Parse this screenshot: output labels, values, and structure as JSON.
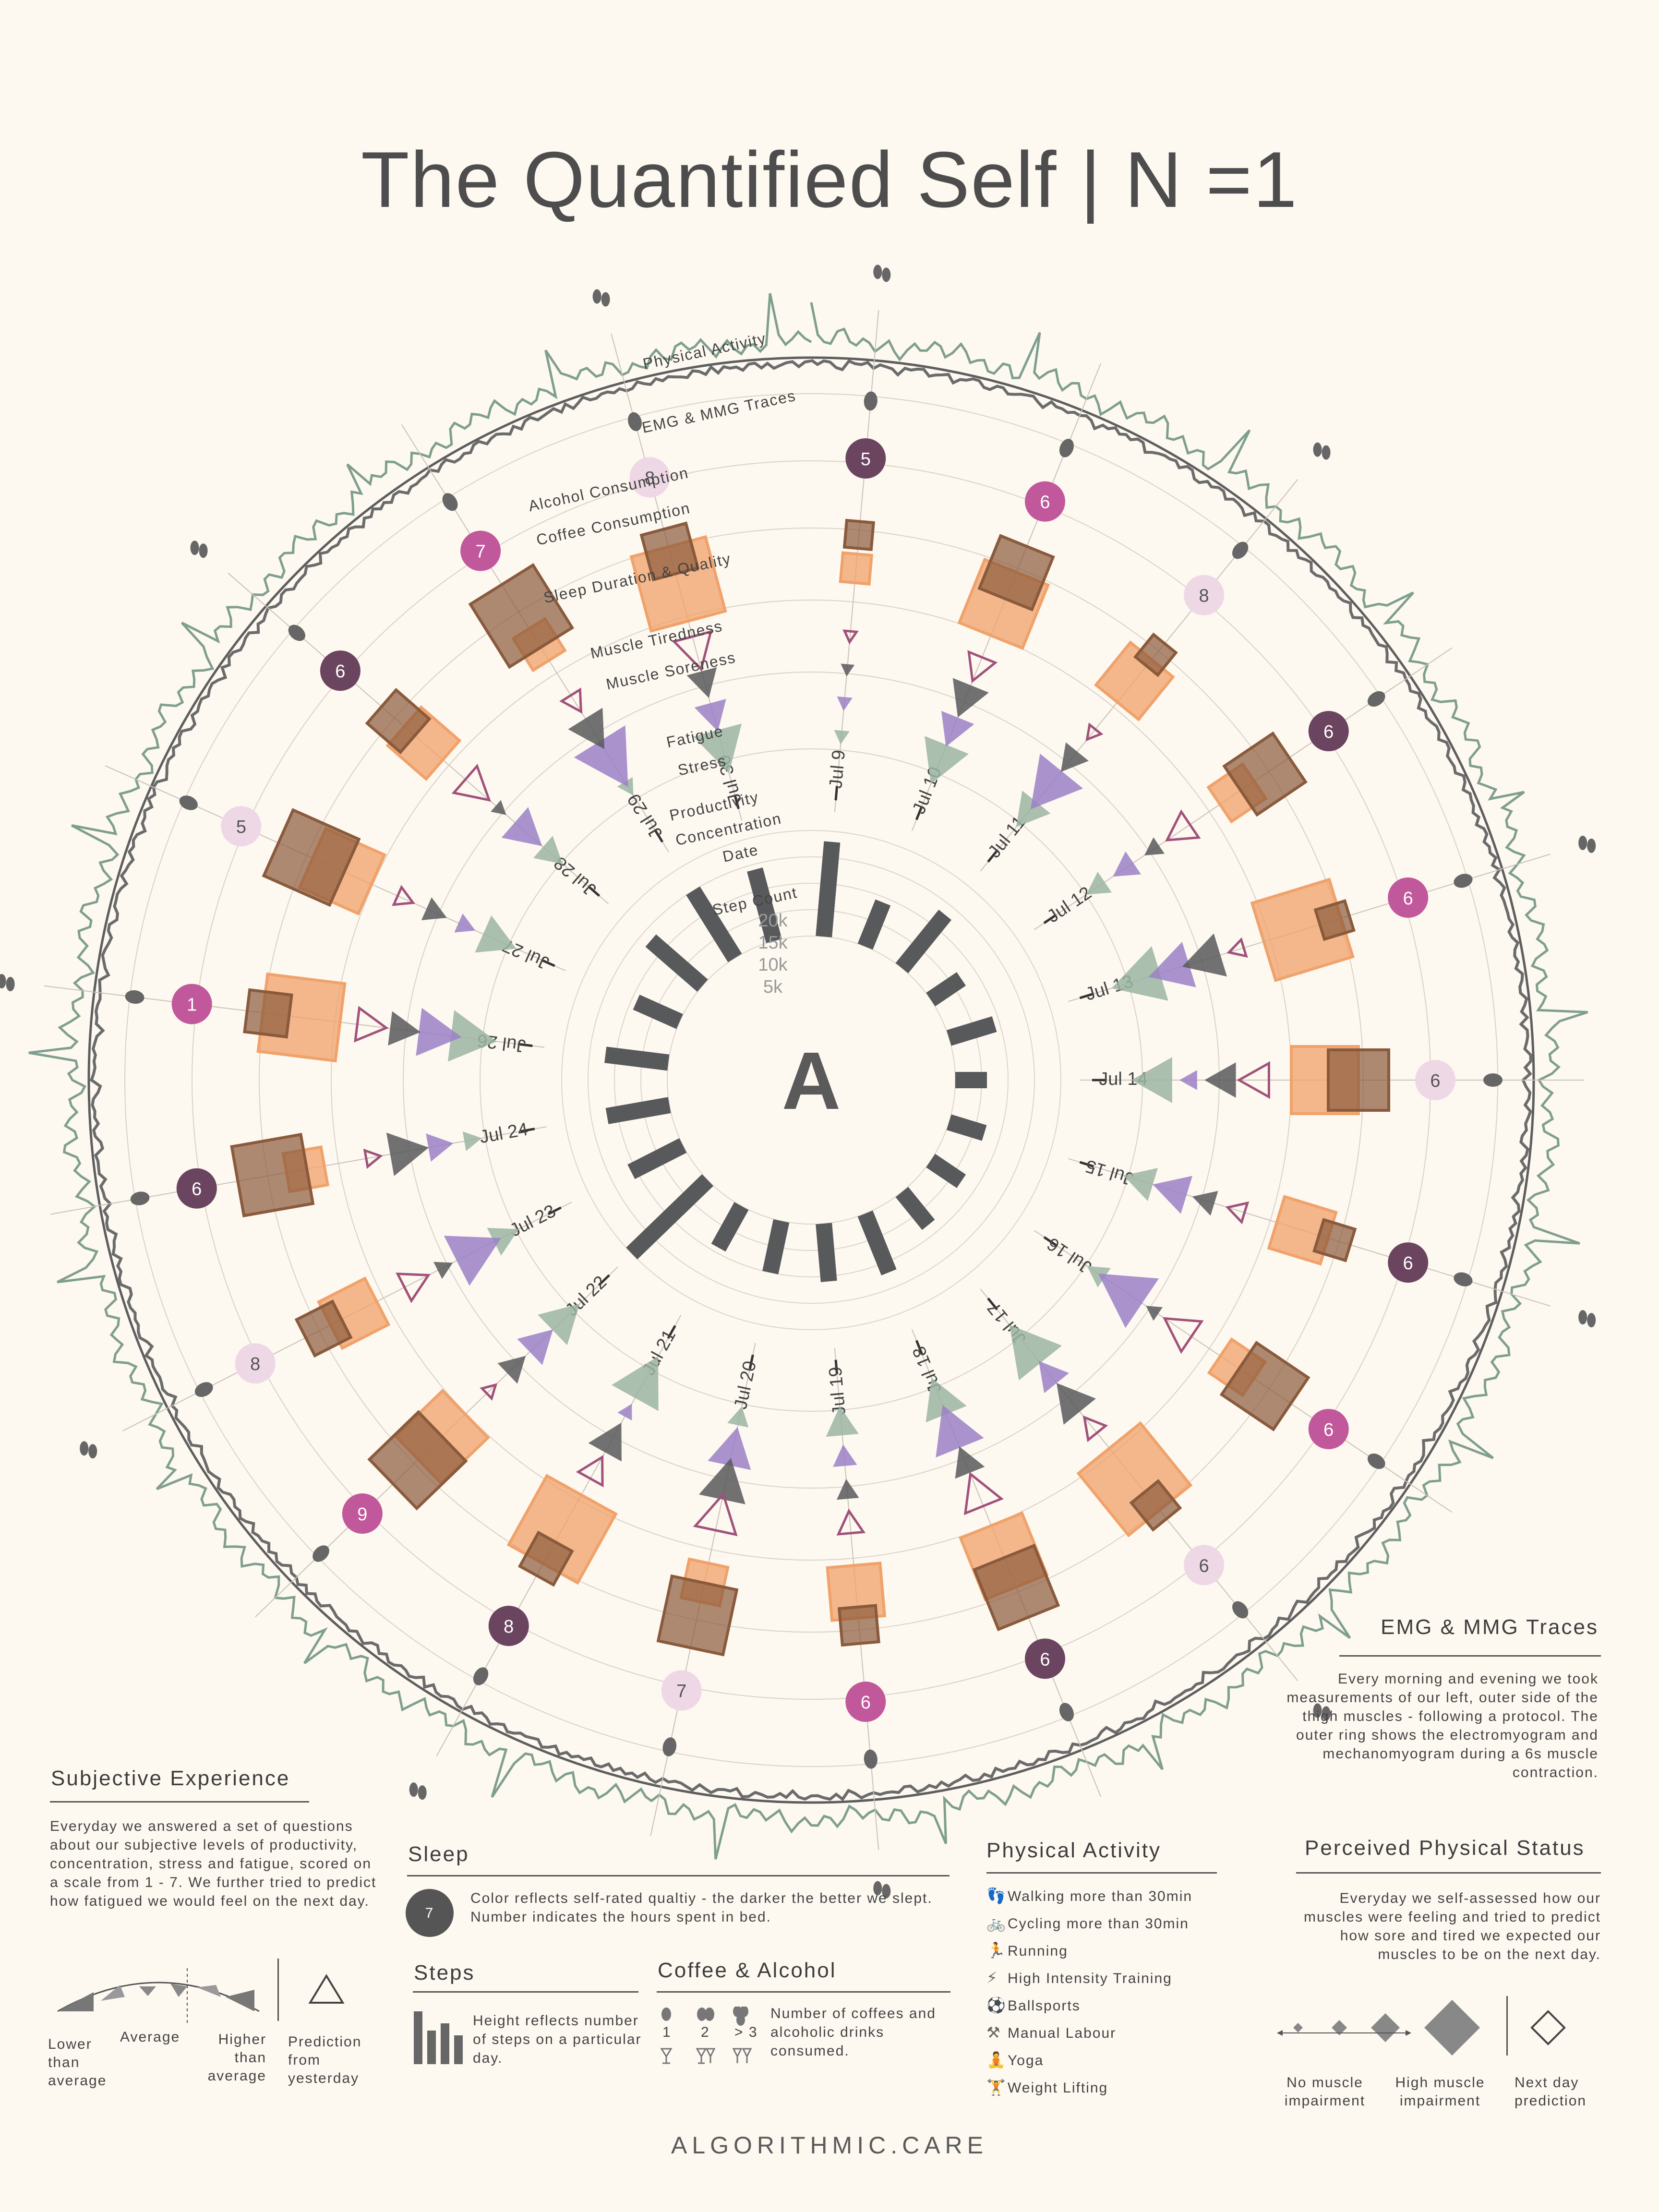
{
  "title": "The Quantified Self | N =1",
  "footer": "ALGORITHMIC.CARE",
  "center_letter": "A",
  "ring_labels": [
    "Physical Activity",
    "EMG & MMG Traces",
    "Alcohol Consumption",
    "Coffee Consumption",
    "Sleep Duration & Quality",
    "Muscle Tiredness",
    "Muscle Soreness",
    "Fatigue",
    "Stress",
    "Productivity",
    "Concentration",
    "Date",
    "Step Count"
  ],
  "step_scale": [
    "20k",
    "15k",
    "10k",
    "5k"
  ],
  "colors": {
    "dark": "#58595b",
    "purple": "#9b80c7",
    "rose": "#a0527a",
    "sage": "#9bb5a2",
    "orange": "#f0a26a",
    "brown": "#8a5a3c",
    "sleep_dark": "#6b4560",
    "sleep_mid": "#c1589b",
    "sleep_light": "#eed8e6",
    "trace": "#7f9f8e",
    "bg": "#fdf8f0"
  },
  "chart_data": {
    "type": "radial",
    "days": [
      {
        "date": "Jul 9",
        "sleep_hours": 5,
        "steps": 18000
      },
      {
        "date": "Jul 10",
        "sleep_hours": 6,
        "steps": 9000
      },
      {
        "date": "Jul 11",
        "sleep_hours": 8,
        "steps": 13000
      },
      {
        "date": "Jul 12",
        "sleep_hours": 6,
        "steps": 7000
      },
      {
        "date": "Jul 13",
        "sleep_hours": 6,
        "steps": 9000
      },
      {
        "date": "Jul 14",
        "sleep_hours": 6,
        "steps": 6000
      },
      {
        "date": "Jul 15",
        "sleep_hours": 6,
        "steps": 7000
      },
      {
        "date": "Jul 16",
        "sleep_hours": 6,
        "steps": 7000
      },
      {
        "date": "Jul 17",
        "sleep_hours": 6,
        "steps": 8000
      },
      {
        "date": "Jul 18",
        "sleep_hours": 6,
        "steps": 12000
      },
      {
        "date": "Jul 19",
        "sleep_hours": 6,
        "steps": 11000
      },
      {
        "date": "Jul 20",
        "sleep_hours": 7,
        "steps": 10000
      },
      {
        "date": "Jul 21",
        "sleep_hours": 8,
        "steps": 9000
      },
      {
        "date": "Jul 22",
        "sleep_hours": 9,
        "steps": 20000
      },
      {
        "date": "Jul 23",
        "sleep_hours": 8,
        "steps": 11000
      },
      {
        "date": "Jul 24",
        "sleep_hours": 6,
        "steps": 12000
      },
      {
        "date": "Jul 26",
        "sleep_hours": 1,
        "steps": 12000
      },
      {
        "date": "Jul 27",
        "sleep_hours": 5,
        "steps": 9000
      },
      {
        "date": "Jul 28",
        "sleep_hours": 6,
        "steps": 13000
      },
      {
        "date": "Jul 29",
        "sleep_hours": 7,
        "steps": 15000
      },
      {
        "date": "Jul 30",
        "sleep_hours": 8,
        "steps": 14000
      }
    ]
  },
  "legend": {
    "subjective": {
      "title": "Subjective Experience",
      "text": "Everyday we answered a set of questions about our subjective levels of productivity, concentration, stress and fatigue, scored on a scale from 1 - 7. We further tried to predict how fatigued we would feel on the next day.",
      "lower": "Lower than average",
      "average": "Average",
      "higher": "Higher than average",
      "prediction": "Prediction from yesterday"
    },
    "sleep": {
      "title": "Sleep",
      "sample": "7",
      "text": "Color reflects self-rated qualtiy - the darker the better we slept. Number indicates the hours spent in bed."
    },
    "steps": {
      "title": "Steps",
      "text": "Height reflects number of steps on a particular day."
    },
    "coffee": {
      "title": "Coffee & Alcohol",
      "counts": [
        "1",
        "2",
        "> 3"
      ],
      "text": "Number of coffees and alcoholic drinks consumed."
    },
    "activity": {
      "title": "Physical Activity",
      "items": [
        {
          "icon": "footprints-icon",
          "glyph": "👣",
          "label": "Walking more than 30min"
        },
        {
          "icon": "bicycle-icon",
          "glyph": "🚲",
          "label": "Cycling more than 30min"
        },
        {
          "icon": "running-icon",
          "glyph": "🏃",
          "label": "Running"
        },
        {
          "icon": "hiit-icon",
          "glyph": "⚡",
          "label": "High Intensity Training"
        },
        {
          "icon": "ball-icon",
          "glyph": "⚽",
          "label": "Ballsports"
        },
        {
          "icon": "tools-icon",
          "glyph": "⚒",
          "label": "Manual Labour"
        },
        {
          "icon": "yoga-icon",
          "glyph": "🧘",
          "label": "Yoga"
        },
        {
          "icon": "weights-icon",
          "glyph": "🏋",
          "label": "Weight Lifting"
        }
      ]
    },
    "emg": {
      "title": "EMG & MMG Traces",
      "text": "Every morning and evening we took measurements of our left, outer side of the thigh muscles - following a protocol. The outer ring shows the electromyogram and mechanomyogram during a 6s muscle contraction."
    },
    "status": {
      "title": "Perceived Physical Status",
      "text": "Everyday we self-assessed how our muscles were feeling and tried to predict how sore and tired we expected our muscles to be on the next day.",
      "no_impairment": "No muscle impairment",
      "high_impairment": "High muscle impairment",
      "prediction": "Next day prediction"
    }
  }
}
